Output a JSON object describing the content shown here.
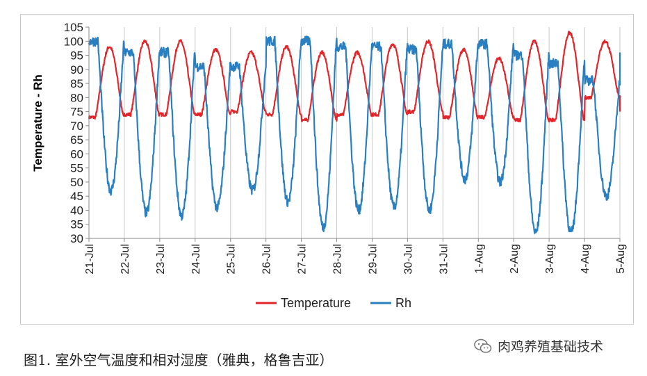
{
  "chart_data": {
    "type": "line",
    "ylabel": "Temperature - Rh",
    "xlabel": "",
    "ylim": [
      30,
      105
    ],
    "y_ticks": [
      30,
      35,
      40,
      45,
      50,
      55,
      60,
      65,
      70,
      75,
      80,
      85,
      90,
      95,
      100,
      105
    ],
    "grid": "vertical",
    "legend_position": "bottom",
    "categories": [
      "21-Jul",
      "22-Jul",
      "23-Jul",
      "24-Jul",
      "25-Jul",
      "26-Jul",
      "27-Jul",
      "28-Jul",
      "29-Jul",
      "30-Jul",
      "31-Jul",
      "1-Aug",
      "2-Aug",
      "3-Aug",
      "4-Aug",
      "5-Aug"
    ],
    "series": [
      {
        "name": "Temperature",
        "color": "#e0262b",
        "daily_min": [
          73,
          74,
          74,
          74,
          75,
          74,
          72,
          74,
          74,
          75,
          73,
          73,
          72,
          72,
          80
        ],
        "daily_max": [
          98,
          100,
          100,
          97,
          96,
          98,
          96,
          96,
          99,
          100,
          97,
          94,
          100,
          103,
          100
        ],
        "end": 75
      },
      {
        "name": "Rh",
        "color": "#2a7fc0",
        "daily_max": [
          100,
          96,
          96,
          91,
          91,
          100,
          100,
          98,
          98,
          97,
          99,
          99,
          95,
          92,
          86
        ],
        "daily_min": [
          47,
          39,
          38,
          41,
          47,
          43,
          34,
          40,
          41,
          40,
          51,
          50,
          32,
          32,
          45
        ],
        "end": 96
      }
    ]
  },
  "caption": "图1. 室外空气温度和相对湿度（雅典，格鲁吉亚）",
  "watermark": "肉鸡养殖基础技术"
}
